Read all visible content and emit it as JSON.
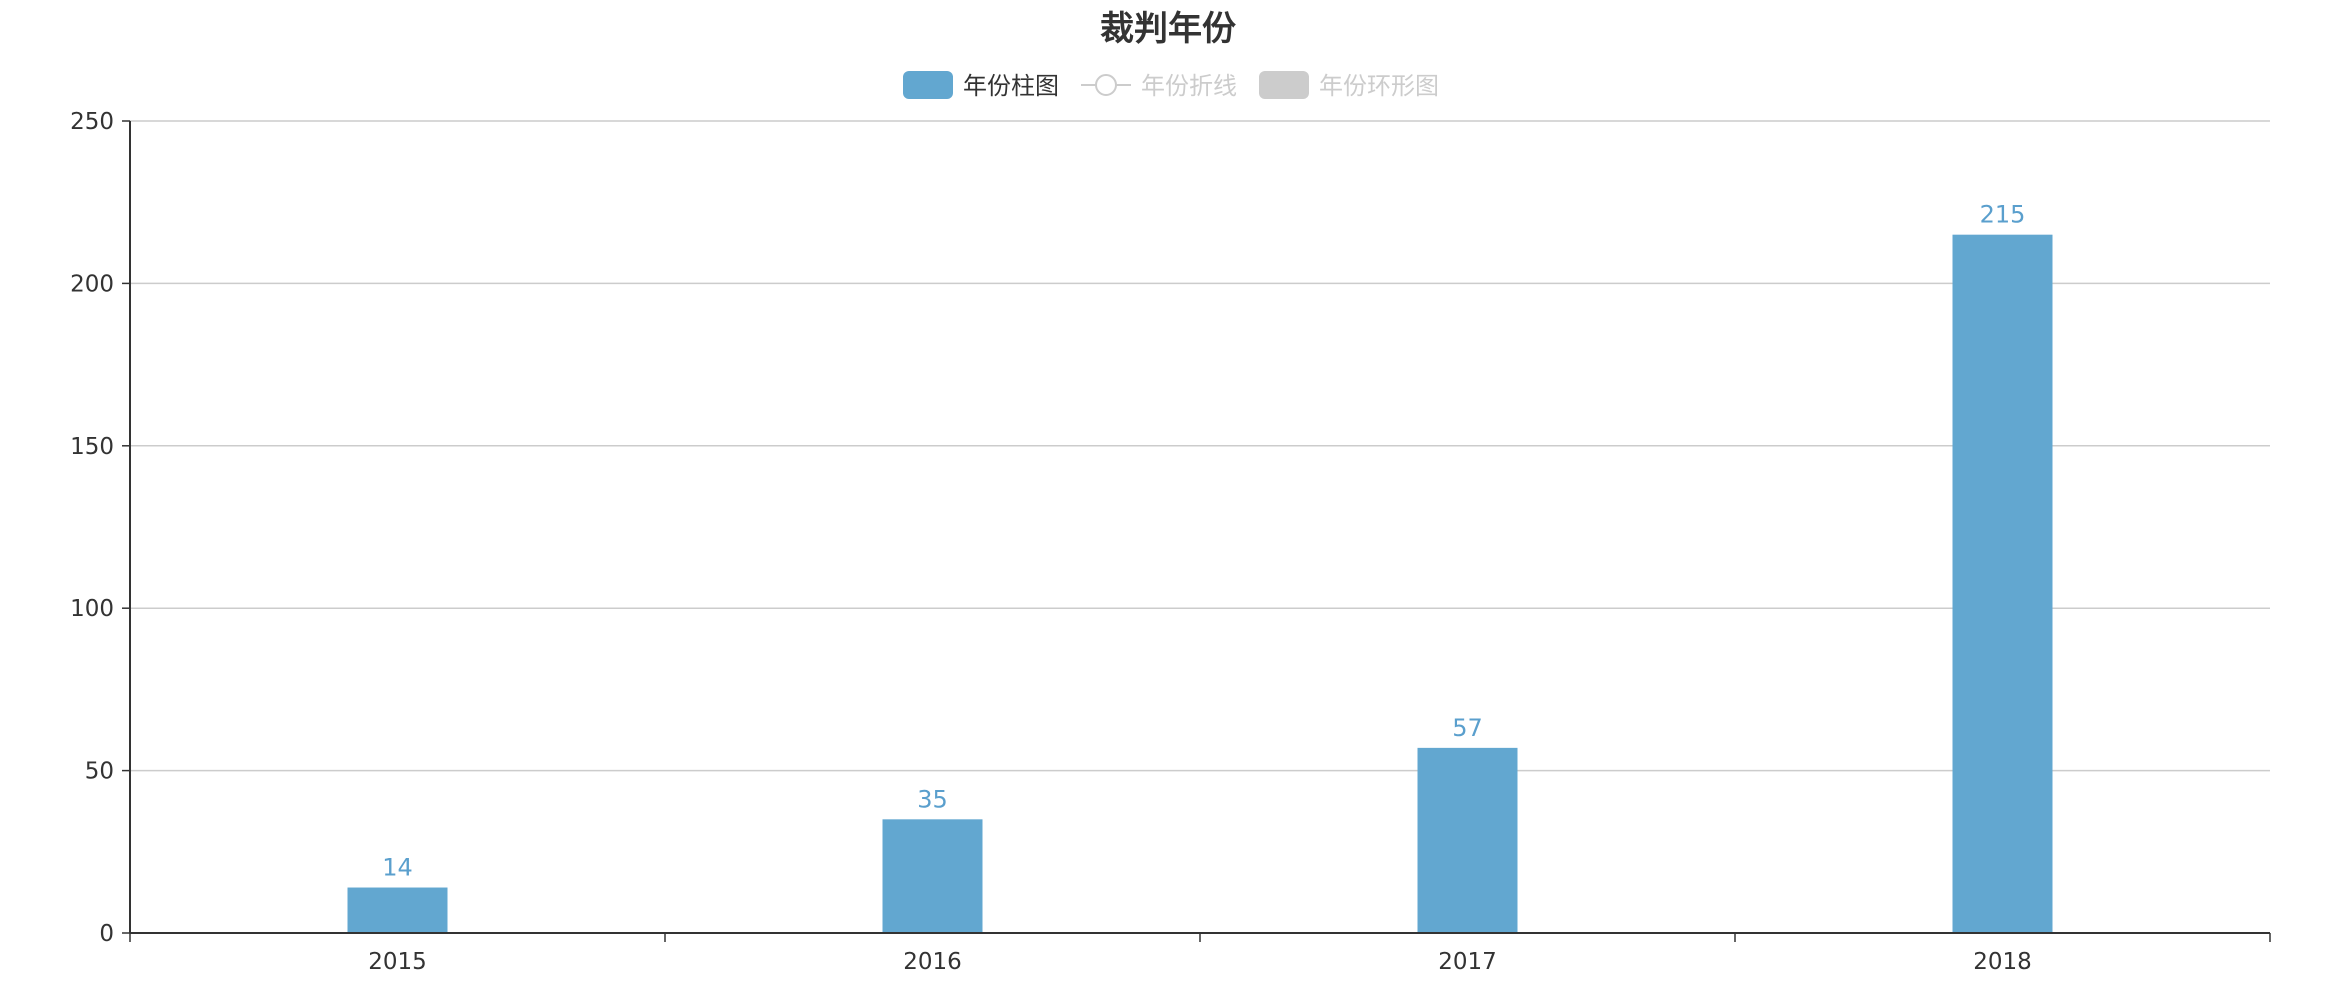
{
  "chart_data": {
    "type": "bar",
    "title": "裁判年份",
    "categories": [
      "2015",
      "2016",
      "2017",
      "2018"
    ],
    "series": [
      {
        "name": "年份柱图",
        "values": [
          14,
          35,
          57,
          215
        ]
      }
    ],
    "ylim": [
      0,
      250
    ],
    "yticks": [
      0,
      50,
      100,
      150,
      200,
      250
    ],
    "grid": true,
    "show_data_labels": true
  },
  "legend": {
    "placement": "top-center",
    "items": [
      {
        "label": "年份柱图",
        "icon": "bar-swatch-icon",
        "active": true,
        "color": "#62a7d0"
      },
      {
        "label": "年份折线",
        "icon": "line-marker-icon",
        "active": false,
        "color": "#cccccc"
      },
      {
        "label": "年份环形图",
        "icon": "ring-swatch-icon",
        "active": false,
        "color": "#cccccc"
      }
    ]
  },
  "colors": {
    "bar": "#62a7d0",
    "label": "#5a9fcd",
    "axis": "#333333",
    "grid": "#cccccc",
    "inactive": "#cccccc",
    "text": "#333333"
  }
}
